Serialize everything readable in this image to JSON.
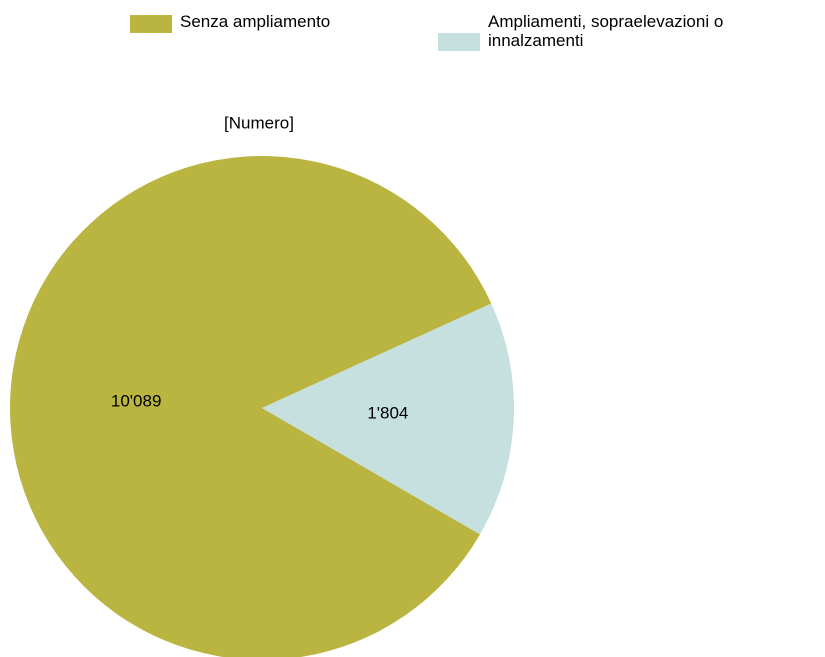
{
  "chart_data": {
    "type": "pie",
    "title": "[Numero]",
    "categories": [
      "Senza ampliamento",
      "Ampliamenti, sopraelevazioni o innalzamenti"
    ],
    "values": [
      10089,
      1804
    ],
    "value_labels": [
      "10'089",
      "1'804"
    ],
    "colors": [
      "#bab441",
      "#c6e0df"
    ]
  }
}
